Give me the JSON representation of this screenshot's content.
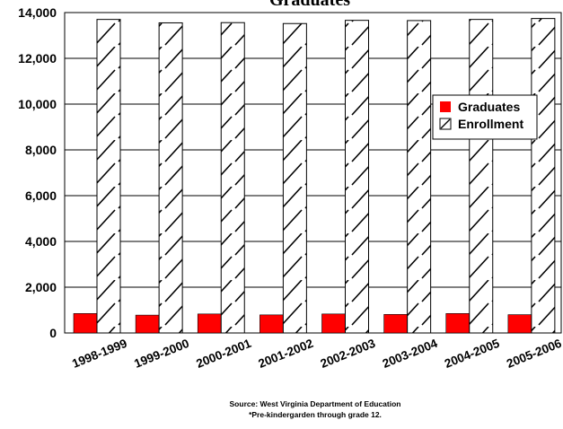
{
  "chart_data": {
    "type": "bar",
    "title": "Graduates",
    "categories": [
      "1998-1999",
      "1999-2000",
      "2000-2001",
      "2001-2002",
      "2002-2003",
      "2003-2004",
      "2004-2005",
      "2005-2006"
    ],
    "series": [
      {
        "name": "Graduates",
        "values": [
          850,
          780,
          830,
          790,
          830,
          810,
          850,
          800
        ],
        "color": "#ff0000",
        "fill": "solid"
      },
      {
        "name": "Enrollment",
        "values": [
          13700,
          13550,
          13560,
          13520,
          13660,
          13650,
          13700,
          13740
        ],
        "color": "#ffffff",
        "fill": "diagonal-hatch"
      }
    ],
    "ylim": [
      0,
      14000
    ],
    "yticks": [
      "0",
      "2,000",
      "4,000",
      "6,000",
      "8,000",
      "10,000",
      "12,000",
      "14,000"
    ],
    "grid": true,
    "legend_position": "right"
  },
  "notes": {
    "source": "Source: West Virginia Department of Education",
    "footnote": "*Pre-kindergarden through grade 12."
  }
}
